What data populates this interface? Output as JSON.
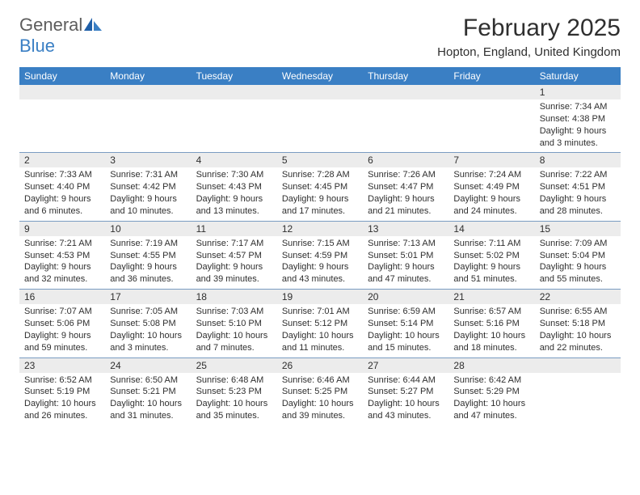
{
  "colors": {
    "header_bg": "#3a7fc4",
    "header_text": "#ffffff",
    "daynum_bg": "#ececec",
    "text": "#2f2f2f",
    "logo_gray": "#5d5d5d",
    "logo_blue": "#3a7fc4",
    "row_divider": "#7a9cc2",
    "page_bg": "#ffffff"
  },
  "fonts": {
    "month_title_pt": 30,
    "location_pt": 15,
    "weekday_pt": 12,
    "daynum_pt": 12,
    "body_pt": 11,
    "logo_pt": 22
  },
  "logo": {
    "text1": "General",
    "text2": "Blue"
  },
  "title": "February 2025",
  "location": "Hopton, England, United Kingdom",
  "weekdays": [
    "Sunday",
    "Monday",
    "Tuesday",
    "Wednesday",
    "Thursday",
    "Friday",
    "Saturday"
  ],
  "weeks": [
    [
      {
        "day": "",
        "sunrise": "",
        "sunset": "",
        "daylight": ""
      },
      {
        "day": "",
        "sunrise": "",
        "sunset": "",
        "daylight": ""
      },
      {
        "day": "",
        "sunrise": "",
        "sunset": "",
        "daylight": ""
      },
      {
        "day": "",
        "sunrise": "",
        "sunset": "",
        "daylight": ""
      },
      {
        "day": "",
        "sunrise": "",
        "sunset": "",
        "daylight": ""
      },
      {
        "day": "",
        "sunrise": "",
        "sunset": "",
        "daylight": ""
      },
      {
        "day": "1",
        "sunrise": "Sunrise: 7:34 AM",
        "sunset": "Sunset: 4:38 PM",
        "daylight": "Daylight: 9 hours and 3 minutes."
      }
    ],
    [
      {
        "day": "2",
        "sunrise": "Sunrise: 7:33 AM",
        "sunset": "Sunset: 4:40 PM",
        "daylight": "Daylight: 9 hours and 6 minutes."
      },
      {
        "day": "3",
        "sunrise": "Sunrise: 7:31 AM",
        "sunset": "Sunset: 4:42 PM",
        "daylight": "Daylight: 9 hours and 10 minutes."
      },
      {
        "day": "4",
        "sunrise": "Sunrise: 7:30 AM",
        "sunset": "Sunset: 4:43 PM",
        "daylight": "Daylight: 9 hours and 13 minutes."
      },
      {
        "day": "5",
        "sunrise": "Sunrise: 7:28 AM",
        "sunset": "Sunset: 4:45 PM",
        "daylight": "Daylight: 9 hours and 17 minutes."
      },
      {
        "day": "6",
        "sunrise": "Sunrise: 7:26 AM",
        "sunset": "Sunset: 4:47 PM",
        "daylight": "Daylight: 9 hours and 21 minutes."
      },
      {
        "day": "7",
        "sunrise": "Sunrise: 7:24 AM",
        "sunset": "Sunset: 4:49 PM",
        "daylight": "Daylight: 9 hours and 24 minutes."
      },
      {
        "day": "8",
        "sunrise": "Sunrise: 7:22 AM",
        "sunset": "Sunset: 4:51 PM",
        "daylight": "Daylight: 9 hours and 28 minutes."
      }
    ],
    [
      {
        "day": "9",
        "sunrise": "Sunrise: 7:21 AM",
        "sunset": "Sunset: 4:53 PM",
        "daylight": "Daylight: 9 hours and 32 minutes."
      },
      {
        "day": "10",
        "sunrise": "Sunrise: 7:19 AM",
        "sunset": "Sunset: 4:55 PM",
        "daylight": "Daylight: 9 hours and 36 minutes."
      },
      {
        "day": "11",
        "sunrise": "Sunrise: 7:17 AM",
        "sunset": "Sunset: 4:57 PM",
        "daylight": "Daylight: 9 hours and 39 minutes."
      },
      {
        "day": "12",
        "sunrise": "Sunrise: 7:15 AM",
        "sunset": "Sunset: 4:59 PM",
        "daylight": "Daylight: 9 hours and 43 minutes."
      },
      {
        "day": "13",
        "sunrise": "Sunrise: 7:13 AM",
        "sunset": "Sunset: 5:01 PM",
        "daylight": "Daylight: 9 hours and 47 minutes."
      },
      {
        "day": "14",
        "sunrise": "Sunrise: 7:11 AM",
        "sunset": "Sunset: 5:02 PM",
        "daylight": "Daylight: 9 hours and 51 minutes."
      },
      {
        "day": "15",
        "sunrise": "Sunrise: 7:09 AM",
        "sunset": "Sunset: 5:04 PM",
        "daylight": "Daylight: 9 hours and 55 minutes."
      }
    ],
    [
      {
        "day": "16",
        "sunrise": "Sunrise: 7:07 AM",
        "sunset": "Sunset: 5:06 PM",
        "daylight": "Daylight: 9 hours and 59 minutes."
      },
      {
        "day": "17",
        "sunrise": "Sunrise: 7:05 AM",
        "sunset": "Sunset: 5:08 PM",
        "daylight": "Daylight: 10 hours and 3 minutes."
      },
      {
        "day": "18",
        "sunrise": "Sunrise: 7:03 AM",
        "sunset": "Sunset: 5:10 PM",
        "daylight": "Daylight: 10 hours and 7 minutes."
      },
      {
        "day": "19",
        "sunrise": "Sunrise: 7:01 AM",
        "sunset": "Sunset: 5:12 PM",
        "daylight": "Daylight: 10 hours and 11 minutes."
      },
      {
        "day": "20",
        "sunrise": "Sunrise: 6:59 AM",
        "sunset": "Sunset: 5:14 PM",
        "daylight": "Daylight: 10 hours and 15 minutes."
      },
      {
        "day": "21",
        "sunrise": "Sunrise: 6:57 AM",
        "sunset": "Sunset: 5:16 PM",
        "daylight": "Daylight: 10 hours and 18 minutes."
      },
      {
        "day": "22",
        "sunrise": "Sunrise: 6:55 AM",
        "sunset": "Sunset: 5:18 PM",
        "daylight": "Daylight: 10 hours and 22 minutes."
      }
    ],
    [
      {
        "day": "23",
        "sunrise": "Sunrise: 6:52 AM",
        "sunset": "Sunset: 5:19 PM",
        "daylight": "Daylight: 10 hours and 26 minutes."
      },
      {
        "day": "24",
        "sunrise": "Sunrise: 6:50 AM",
        "sunset": "Sunset: 5:21 PM",
        "daylight": "Daylight: 10 hours and 31 minutes."
      },
      {
        "day": "25",
        "sunrise": "Sunrise: 6:48 AM",
        "sunset": "Sunset: 5:23 PM",
        "daylight": "Daylight: 10 hours and 35 minutes."
      },
      {
        "day": "26",
        "sunrise": "Sunrise: 6:46 AM",
        "sunset": "Sunset: 5:25 PM",
        "daylight": "Daylight: 10 hours and 39 minutes."
      },
      {
        "day": "27",
        "sunrise": "Sunrise: 6:44 AM",
        "sunset": "Sunset: 5:27 PM",
        "daylight": "Daylight: 10 hours and 43 minutes."
      },
      {
        "day": "28",
        "sunrise": "Sunrise: 6:42 AM",
        "sunset": "Sunset: 5:29 PM",
        "daylight": "Daylight: 10 hours and 47 minutes."
      },
      {
        "day": "",
        "sunrise": "",
        "sunset": "",
        "daylight": ""
      }
    ]
  ]
}
